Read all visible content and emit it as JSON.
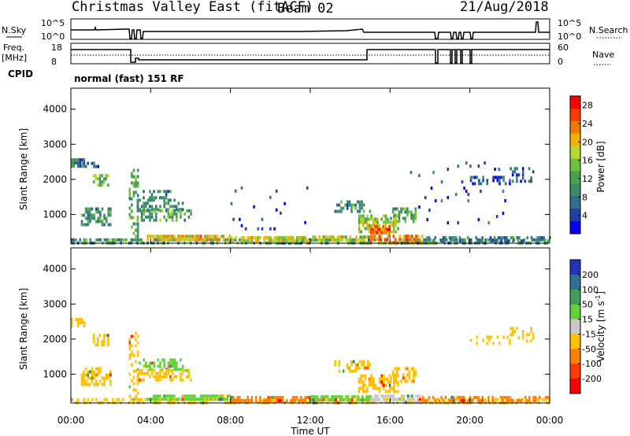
{
  "header": {
    "station": "Christmas Valley East (fitACF)",
    "beam": "Beam 02",
    "date": "21/Aug/2018"
  },
  "params_panel": {
    "nsky_label": "N.Sky",
    "nsky_ticks": [
      "10^5",
      "10^0"
    ],
    "nsearch_label": "N.Search",
    "nsearch_ticks": [
      "10^5",
      "10^0"
    ],
    "freq_label": "Freq.",
    "freq_unit": "[MHz]",
    "freq_ticks": [
      "18",
      "8"
    ],
    "nave_label": "Nave",
    "nave_ticks": [
      "60",
      "0"
    ],
    "cpid_label": "CPID",
    "cpid_value": "normal (fast) 151 RF"
  },
  "chart_data": [
    {
      "type": "heatmap",
      "name": "power",
      "ylabel": "Slant Range [km]",
      "yticks": [
        1000,
        2000,
        3000,
        4000
      ],
      "ylim": [
        180,
        4600
      ],
      "xlim": [
        0,
        24
      ],
      "xticklabels": [
        "00:00",
        "04:00",
        "08:00",
        "12:00",
        "16:00",
        "20:00",
        "00:00"
      ],
      "xticks": [
        0,
        4,
        8,
        12,
        16,
        20,
        24
      ],
      "colorbar": {
        "label": "Power [dB]",
        "ticks": [
          "28",
          "24",
          "20",
          "16",
          "12",
          "8",
          "4"
        ],
        "tick_values": [
          28,
          24,
          20,
          16,
          12,
          8,
          4
        ],
        "range": [
          0,
          30
        ],
        "colors": [
          "#0000ff",
          "#1f3faa",
          "#2f6f8f",
          "#3c8c6a",
          "#49a34b",
          "#6ec43c",
          "#b8d82f",
          "#f0b400",
          "#f07a00",
          "#ff3a00",
          "#ff0000"
        ]
      },
      "regions": [
        {
          "t": [
            1.9,
            3.2
          ],
          "r": [
            300,
            320
          ],
          "v": 14,
          "density": 0.7
        },
        {
          "t": [
            0.0,
            24.0
          ],
          "r": [
            200,
            320
          ],
          "v": 10,
          "density": 0.55
        },
        {
          "t": [
            3.8,
            8.0
          ],
          "r": [
            260,
            420
          ],
          "v": 20,
          "density": 0.8
        },
        {
          "t": [
            8.0,
            12.0
          ],
          "r": [
            230,
            380
          ],
          "v": 18,
          "density": 0.75
        },
        {
          "t": [
            12.0,
            15.0
          ],
          "r": [
            230,
            400
          ],
          "v": 17,
          "density": 0.75
        },
        {
          "t": [
            15.0,
            17.6
          ],
          "r": [
            230,
            420
          ],
          "v": 22,
          "density": 0.7
        },
        {
          "t": [
            17.6,
            24.0
          ],
          "r": [
            220,
            380
          ],
          "v": 8,
          "density": 0.45
        },
        {
          "t": [
            0.0,
            0.7
          ],
          "r": [
            2350,
            2600
          ],
          "v": 9,
          "density": 0.7
        },
        {
          "t": [
            0.6,
            1.5
          ],
          "r": [
            2350,
            2500
          ],
          "v": 7,
          "density": 0.4
        },
        {
          "t": [
            1.1,
            1.9
          ],
          "r": [
            1800,
            2150
          ],
          "v": 15,
          "density": 0.65
        },
        {
          "t": [
            0.5,
            2.0
          ],
          "r": [
            700,
            1200
          ],
          "v": 10,
          "density": 0.55
        },
        {
          "t": [
            2.9,
            3.4
          ],
          "r": [
            300,
            2300
          ],
          "v": 12,
          "density": 0.35
        },
        {
          "t": [
            3.3,
            5.6
          ],
          "r": [
            1150,
            1450
          ],
          "v": 9,
          "density": 0.6
        },
        {
          "t": [
            3.3,
            6.0
          ],
          "r": [
            800,
            1150
          ],
          "v": 12,
          "density": 0.55
        },
        {
          "t": [
            3.6,
            5.0
          ],
          "r": [
            1500,
            1700
          ],
          "v": 8,
          "density": 0.4
        },
        {
          "t": [
            13.2,
            15.0
          ],
          "r": [
            1050,
            1400
          ],
          "v": 10,
          "density": 0.5
        },
        {
          "t": [
            14.4,
            16.4
          ],
          "r": [
            550,
            1000
          ],
          "v": 16,
          "density": 0.65
        },
        {
          "t": [
            15.0,
            16.0
          ],
          "r": [
            450,
            700
          ],
          "v": 24,
          "density": 0.6
        },
        {
          "t": [
            16.0,
            17.3
          ],
          "r": [
            800,
            1200
          ],
          "v": 12,
          "density": 0.55
        },
        {
          "t": [
            20.0,
            22.0
          ],
          "r": [
            1850,
            2100
          ],
          "v": 6,
          "density": 0.35
        },
        {
          "t": [
            22.0,
            23.2
          ],
          "r": [
            1950,
            2350
          ],
          "v": 6,
          "density": 0.35
        },
        {
          "t": [
            8.0,
            12.0
          ],
          "r": [
            600,
            1800
          ],
          "v": 4,
          "density": 0.03
        },
        {
          "t": [
            17.0,
            22.0
          ],
          "r": [
            800,
            2600
          ],
          "v": 4,
          "density": 0.03
        }
      ]
    },
    {
      "type": "heatmap",
      "name": "velocity",
      "ylabel": "Slant Range [km]",
      "yticks": [
        1000,
        2000,
        3000,
        4000
      ],
      "ylim": [
        180,
        4600
      ],
      "xlim": [
        0,
        24
      ],
      "xlabel": "Time UT",
      "xticklabels": [
        "00:00",
        "04:00",
        "08:00",
        "12:00",
        "16:00",
        "20:00",
        "00:00"
      ],
      "xticks": [
        0,
        4,
        8,
        12,
        16,
        20,
        24
      ],
      "colorbar": {
        "label": "Velocity [m s",
        "label_sup": "-1",
        "label_end": "]",
        "ticks": [
          "200",
          "100",
          "50",
          "15",
          "-15",
          "-50",
          "-100",
          "-200"
        ],
        "bands": [
          {
            "color": "#2133b8"
          },
          {
            "color": "#2f6f8f"
          },
          {
            "color": "#3f9f5a"
          },
          {
            "color": "#62d23c"
          },
          {
            "color": "#c8c8c8"
          },
          {
            "color": "#ffc000"
          },
          {
            "color": "#ff7f00"
          },
          {
            "color": "#ff3a00"
          },
          {
            "color": "#ff0000"
          }
        ]
      },
      "regions": [
        {
          "t": [
            0.0,
            24.0
          ],
          "r": [
            200,
            320
          ],
          "v": "-15",
          "density": 0.5
        },
        {
          "t": [
            3.8,
            8.0
          ],
          "r": [
            260,
            420
          ],
          "v": "50",
          "density": 0.8
        },
        {
          "t": [
            8.0,
            12.0
          ],
          "r": [
            230,
            380
          ],
          "v": "-50",
          "density": 0.7
        },
        {
          "t": [
            12.0,
            15.0
          ],
          "r": [
            230,
            400
          ],
          "v": "50",
          "density": 0.7
        },
        {
          "t": [
            15.0,
            17.6
          ],
          "r": [
            230,
            420
          ],
          "v": "15",
          "density": 0.65
        },
        {
          "t": [
            17.6,
            24.0
          ],
          "r": [
            220,
            380
          ],
          "v": "-50",
          "density": 0.45
        },
        {
          "t": [
            0.0,
            0.7
          ],
          "r": [
            2350,
            2600
          ],
          "v": "-15",
          "density": 0.7
        },
        {
          "t": [
            1.1,
            1.9
          ],
          "r": [
            1800,
            2150
          ],
          "v": "-15",
          "density": 0.65
        },
        {
          "t": [
            0.5,
            2.0
          ],
          "r": [
            700,
            1200
          ],
          "v": "-15",
          "density": 0.55
        },
        {
          "t": [
            2.9,
            3.4
          ],
          "r": [
            300,
            2300
          ],
          "v": "-15",
          "density": 0.3
        },
        {
          "t": [
            3.3,
            5.6
          ],
          "r": [
            1150,
            1450
          ],
          "v": "50",
          "density": 0.55
        },
        {
          "t": [
            3.3,
            6.0
          ],
          "r": [
            800,
            1150
          ],
          "v": "-15",
          "density": 0.5
        },
        {
          "t": [
            13.2,
            15.0
          ],
          "r": [
            1050,
            1400
          ],
          "v": "-15",
          "density": 0.5
        },
        {
          "t": [
            14.4,
            16.4
          ],
          "r": [
            550,
            1000
          ],
          "v": "-15",
          "density": 0.6
        },
        {
          "t": [
            16.0,
            17.3
          ],
          "r": [
            800,
            1200
          ],
          "v": "-15",
          "density": 0.5
        },
        {
          "t": [
            20.0,
            22.0
          ],
          "r": [
            1850,
            2100
          ],
          "v": "-15",
          "density": 0.35
        },
        {
          "t": [
            22.0,
            23.2
          ],
          "r": [
            1950,
            2350
          ],
          "v": "-15",
          "density": 0.35
        }
      ]
    }
  ]
}
